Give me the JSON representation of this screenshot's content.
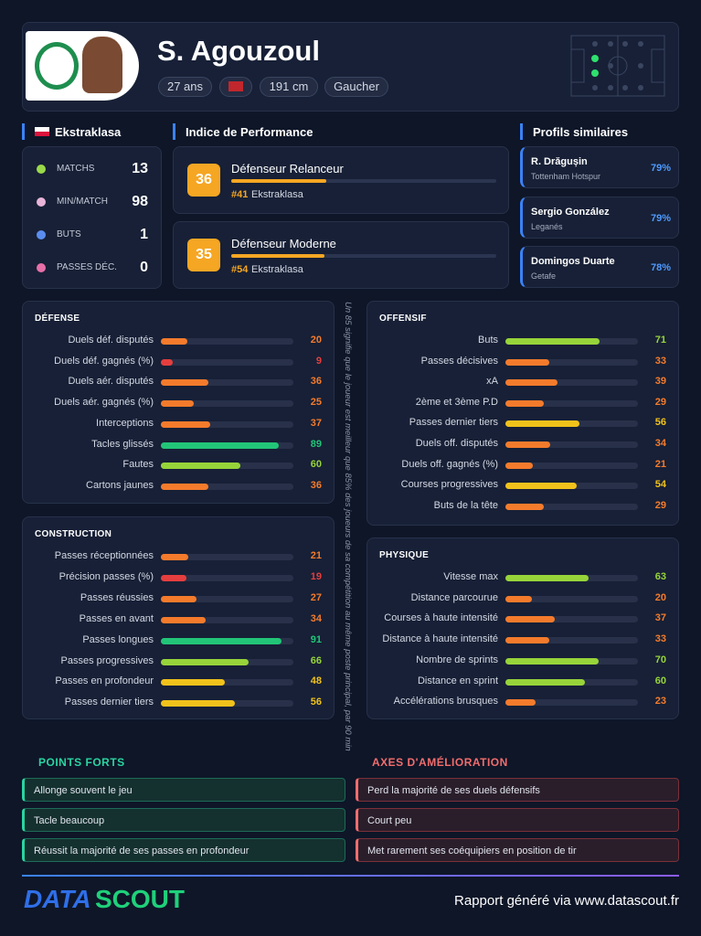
{
  "header": {
    "name": "S. Agouzoul",
    "pills": [
      "27 ans",
      "191 cm",
      "Gaucher"
    ]
  },
  "league": {
    "title": "Ekstraklasa",
    "stats": [
      {
        "label": "MATCHS",
        "value": 13
      },
      {
        "label": "MIN/MATCH",
        "value": 98
      },
      {
        "label": "BUTS",
        "value": 1
      },
      {
        "label": "PASSES DÉC.",
        "value": 0
      }
    ]
  },
  "performance": {
    "title": "Indice de Performance",
    "profiles": [
      {
        "score": 36,
        "name": "Défenseur Relanceur",
        "rank": "#41",
        "league": "Ekstraklasa"
      },
      {
        "score": 35,
        "name": "Défenseur Moderne",
        "rank": "#54",
        "league": "Ekstraklasa"
      }
    ]
  },
  "similar": {
    "title": "Profils similaires",
    "players": [
      {
        "name": "R. Drăgușin",
        "club": "Tottenham Hotspur",
        "score": "79%"
      },
      {
        "name": "Sergio González",
        "club": "Leganés",
        "score": "79%"
      },
      {
        "name": "Domingos Duarte",
        "club": "Getafe",
        "score": "78%"
      }
    ]
  },
  "note": "Un 85 signifie que le joueur est meilleur que 85% des joueurs de sa compétition au même poste principal, par 90 min",
  "sections": [
    {
      "title": "DÉFENSE",
      "rows": [
        {
          "label": "Duels déf. disputés",
          "value": 20
        },
        {
          "label": "Duels déf. gagnés (%)",
          "value": 9
        },
        {
          "label": "Duels aér. disputés",
          "value": 36
        },
        {
          "label": "Duels aér. gagnés (%)",
          "value": 25
        },
        {
          "label": "Interceptions",
          "value": 37
        },
        {
          "label": "Tacles glissés",
          "value": 89
        },
        {
          "label": "Fautes",
          "value": 60
        },
        {
          "label": "Cartons jaunes",
          "value": 36
        }
      ]
    },
    {
      "title": "CONSTRUCTION",
      "rows": [
        {
          "label": "Passes réceptionnées",
          "value": 21
        },
        {
          "label": "Précision passes (%)",
          "value": 19
        },
        {
          "label": "Passes réussies",
          "value": 27
        },
        {
          "label": "Passes en avant",
          "value": 34
        },
        {
          "label": "Passes longues",
          "value": 91
        },
        {
          "label": "Passes progressives",
          "value": 66
        },
        {
          "label": "Passes en profondeur",
          "value": 48
        },
        {
          "label": "Passes dernier tiers",
          "value": 56
        }
      ]
    },
    {
      "title": "OFFENSIF",
      "rows": [
        {
          "label": "Buts",
          "value": 71
        },
        {
          "label": "Passes décisives",
          "value": 33
        },
        {
          "label": "xA",
          "value": 39
        },
        {
          "label": "2ème et 3ème P.D",
          "value": 29
        },
        {
          "label": "Passes dernier tiers",
          "value": 56
        },
        {
          "label": "Duels off. disputés",
          "value": 34
        },
        {
          "label": "Duels off. gagnés (%)",
          "value": 21
        },
        {
          "label": "Courses progressives",
          "value": 54
        },
        {
          "label": "Buts de la tête",
          "value": 29
        }
      ]
    },
    {
      "title": "PHYSIQUE",
      "rows": [
        {
          "label": "Vitesse max",
          "value": 63
        },
        {
          "label": "Distance parcourue",
          "value": 20
        },
        {
          "label": "Courses à haute intensité",
          "value": 37
        },
        {
          "label": "Distance à haute intensité",
          "value": 33
        },
        {
          "label": "Nombre de sprints",
          "value": 70
        },
        {
          "label": "Distance en sprint",
          "value": 60
        },
        {
          "label": "Accélérations brusques",
          "value": 23
        }
      ]
    }
  ],
  "strengths": {
    "title": "POINTS FORTS",
    "items": [
      "Allonge souvent le jeu",
      "Tacle beaucoup",
      "Réussit la majorité de ses passes en profondeur"
    ]
  },
  "improvements": {
    "title": "AXES D'AMÉLIORATION",
    "items": [
      "Perd la majorité de ses duels défensifs",
      "Court peu",
      "Met rarement ses coéquipiers en position de tir"
    ]
  },
  "footer": {
    "brand_left": "DATA",
    "brand_right": "SCOUT",
    "text": "Rapport généré via www.datascout.fr"
  }
}
